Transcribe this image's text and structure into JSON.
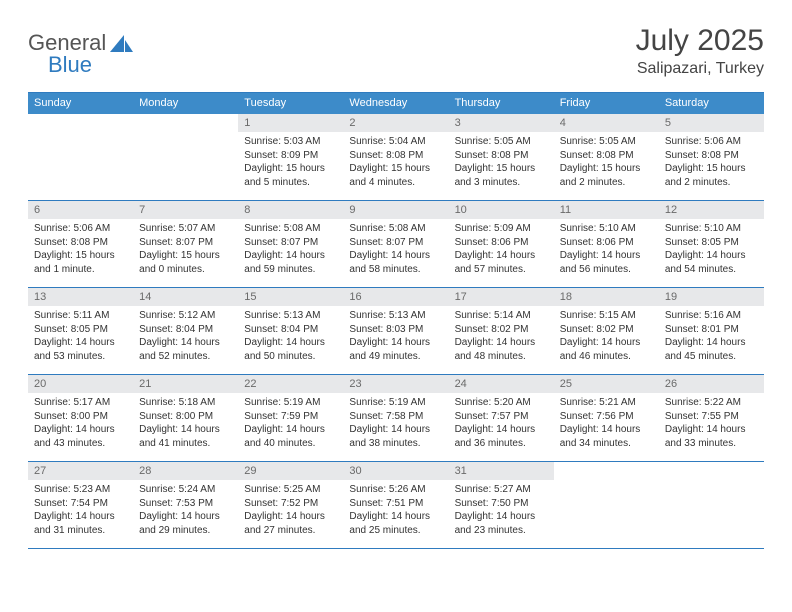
{
  "brand": {
    "part1": "General",
    "part2": "Blue"
  },
  "title": "July 2025",
  "location": "Salipazari, Turkey",
  "colors": {
    "header_bg": "#3d8bc9",
    "rule": "#2f7bbf",
    "numrow_bg": "#e7e8ea",
    "text": "#333333",
    "muted": "#6a6a6a"
  },
  "day_names": [
    "Sunday",
    "Monday",
    "Tuesday",
    "Wednesday",
    "Thursday",
    "Friday",
    "Saturday"
  ],
  "weeks": [
    [
      {
        "n": "",
        "sr": "",
        "ss": "",
        "dl": ""
      },
      {
        "n": "",
        "sr": "",
        "ss": "",
        "dl": ""
      },
      {
        "n": "1",
        "sr": "Sunrise: 5:03 AM",
        "ss": "Sunset: 8:09 PM",
        "dl": "Daylight: 15 hours and 5 minutes."
      },
      {
        "n": "2",
        "sr": "Sunrise: 5:04 AM",
        "ss": "Sunset: 8:08 PM",
        "dl": "Daylight: 15 hours and 4 minutes."
      },
      {
        "n": "3",
        "sr": "Sunrise: 5:05 AM",
        "ss": "Sunset: 8:08 PM",
        "dl": "Daylight: 15 hours and 3 minutes."
      },
      {
        "n": "4",
        "sr": "Sunrise: 5:05 AM",
        "ss": "Sunset: 8:08 PM",
        "dl": "Daylight: 15 hours and 2 minutes."
      },
      {
        "n": "5",
        "sr": "Sunrise: 5:06 AM",
        "ss": "Sunset: 8:08 PM",
        "dl": "Daylight: 15 hours and 2 minutes."
      }
    ],
    [
      {
        "n": "6",
        "sr": "Sunrise: 5:06 AM",
        "ss": "Sunset: 8:08 PM",
        "dl": "Daylight: 15 hours and 1 minute."
      },
      {
        "n": "7",
        "sr": "Sunrise: 5:07 AM",
        "ss": "Sunset: 8:07 PM",
        "dl": "Daylight: 15 hours and 0 minutes."
      },
      {
        "n": "8",
        "sr": "Sunrise: 5:08 AM",
        "ss": "Sunset: 8:07 PM",
        "dl": "Daylight: 14 hours and 59 minutes."
      },
      {
        "n": "9",
        "sr": "Sunrise: 5:08 AM",
        "ss": "Sunset: 8:07 PM",
        "dl": "Daylight: 14 hours and 58 minutes."
      },
      {
        "n": "10",
        "sr": "Sunrise: 5:09 AM",
        "ss": "Sunset: 8:06 PM",
        "dl": "Daylight: 14 hours and 57 minutes."
      },
      {
        "n": "11",
        "sr": "Sunrise: 5:10 AM",
        "ss": "Sunset: 8:06 PM",
        "dl": "Daylight: 14 hours and 56 minutes."
      },
      {
        "n": "12",
        "sr": "Sunrise: 5:10 AM",
        "ss": "Sunset: 8:05 PM",
        "dl": "Daylight: 14 hours and 54 minutes."
      }
    ],
    [
      {
        "n": "13",
        "sr": "Sunrise: 5:11 AM",
        "ss": "Sunset: 8:05 PM",
        "dl": "Daylight: 14 hours and 53 minutes."
      },
      {
        "n": "14",
        "sr": "Sunrise: 5:12 AM",
        "ss": "Sunset: 8:04 PM",
        "dl": "Daylight: 14 hours and 52 minutes."
      },
      {
        "n": "15",
        "sr": "Sunrise: 5:13 AM",
        "ss": "Sunset: 8:04 PM",
        "dl": "Daylight: 14 hours and 50 minutes."
      },
      {
        "n": "16",
        "sr": "Sunrise: 5:13 AM",
        "ss": "Sunset: 8:03 PM",
        "dl": "Daylight: 14 hours and 49 minutes."
      },
      {
        "n": "17",
        "sr": "Sunrise: 5:14 AM",
        "ss": "Sunset: 8:02 PM",
        "dl": "Daylight: 14 hours and 48 minutes."
      },
      {
        "n": "18",
        "sr": "Sunrise: 5:15 AM",
        "ss": "Sunset: 8:02 PM",
        "dl": "Daylight: 14 hours and 46 minutes."
      },
      {
        "n": "19",
        "sr": "Sunrise: 5:16 AM",
        "ss": "Sunset: 8:01 PM",
        "dl": "Daylight: 14 hours and 45 minutes."
      }
    ],
    [
      {
        "n": "20",
        "sr": "Sunrise: 5:17 AM",
        "ss": "Sunset: 8:00 PM",
        "dl": "Daylight: 14 hours and 43 minutes."
      },
      {
        "n": "21",
        "sr": "Sunrise: 5:18 AM",
        "ss": "Sunset: 8:00 PM",
        "dl": "Daylight: 14 hours and 41 minutes."
      },
      {
        "n": "22",
        "sr": "Sunrise: 5:19 AM",
        "ss": "Sunset: 7:59 PM",
        "dl": "Daylight: 14 hours and 40 minutes."
      },
      {
        "n": "23",
        "sr": "Sunrise: 5:19 AM",
        "ss": "Sunset: 7:58 PM",
        "dl": "Daylight: 14 hours and 38 minutes."
      },
      {
        "n": "24",
        "sr": "Sunrise: 5:20 AM",
        "ss": "Sunset: 7:57 PM",
        "dl": "Daylight: 14 hours and 36 minutes."
      },
      {
        "n": "25",
        "sr": "Sunrise: 5:21 AM",
        "ss": "Sunset: 7:56 PM",
        "dl": "Daylight: 14 hours and 34 minutes."
      },
      {
        "n": "26",
        "sr": "Sunrise: 5:22 AM",
        "ss": "Sunset: 7:55 PM",
        "dl": "Daylight: 14 hours and 33 minutes."
      }
    ],
    [
      {
        "n": "27",
        "sr": "Sunrise: 5:23 AM",
        "ss": "Sunset: 7:54 PM",
        "dl": "Daylight: 14 hours and 31 minutes."
      },
      {
        "n": "28",
        "sr": "Sunrise: 5:24 AM",
        "ss": "Sunset: 7:53 PM",
        "dl": "Daylight: 14 hours and 29 minutes."
      },
      {
        "n": "29",
        "sr": "Sunrise: 5:25 AM",
        "ss": "Sunset: 7:52 PM",
        "dl": "Daylight: 14 hours and 27 minutes."
      },
      {
        "n": "30",
        "sr": "Sunrise: 5:26 AM",
        "ss": "Sunset: 7:51 PM",
        "dl": "Daylight: 14 hours and 25 minutes."
      },
      {
        "n": "31",
        "sr": "Sunrise: 5:27 AM",
        "ss": "Sunset: 7:50 PM",
        "dl": "Daylight: 14 hours and 23 minutes."
      },
      {
        "n": "",
        "sr": "",
        "ss": "",
        "dl": ""
      },
      {
        "n": "",
        "sr": "",
        "ss": "",
        "dl": ""
      }
    ]
  ]
}
